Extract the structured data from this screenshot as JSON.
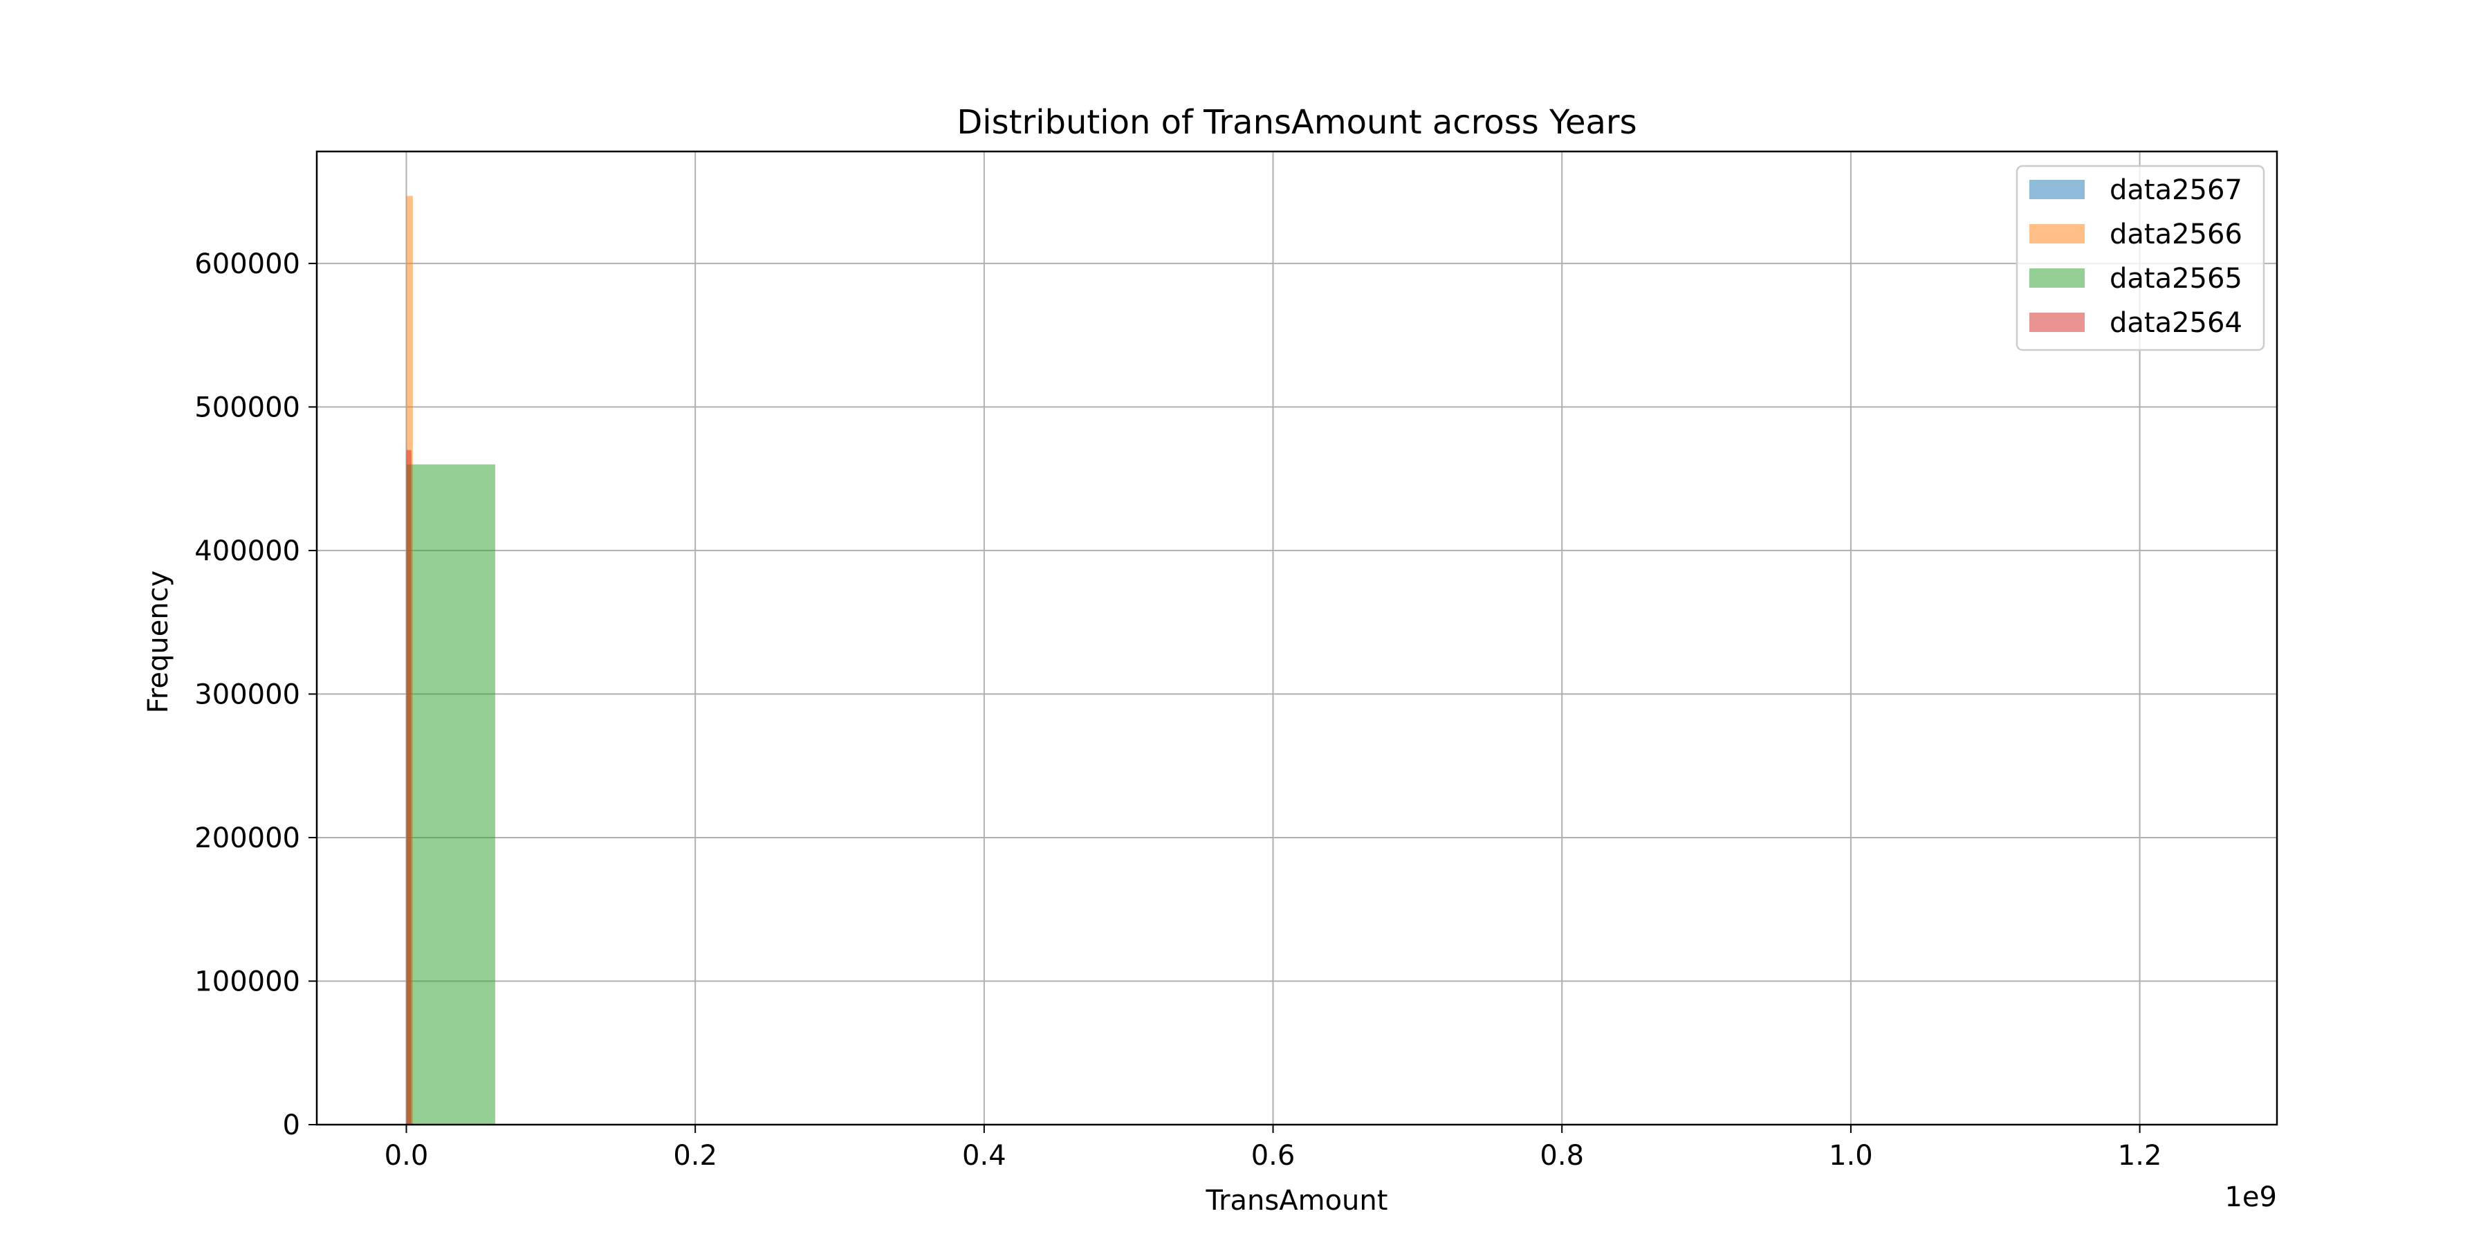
{
  "chart_data": {
    "type": "bar",
    "title": "Distribution of TransAmount across Years",
    "xlabel": "TransAmount",
    "ylabel": "Frequency",
    "x_offset_text": "1e9",
    "xlim": [
      -0.062,
      1.295
    ],
    "ylim": [
      0,
      678000
    ],
    "x_ticks": [
      0.0,
      0.2,
      0.4,
      0.6,
      0.8,
      1.0,
      1.2
    ],
    "x_tick_labels": [
      "0.0",
      "0.2",
      "0.4",
      "0.6",
      "0.8",
      "1.0",
      "1.2"
    ],
    "y_ticks": [
      0,
      100000,
      200000,
      300000,
      400000,
      500000,
      600000
    ],
    "y_tick_labels": [
      "0",
      "100000",
      "200000",
      "300000",
      "400000",
      "500000",
      "600000"
    ],
    "grid": true,
    "legend_position": "top-right",
    "series": [
      {
        "name": "data2567",
        "color": "#1f77b4",
        "bars": []
      },
      {
        "name": "data2566",
        "color": "#ff7f0e",
        "bars": [
          {
            "x0": 0.0,
            "x1": 0.0045,
            "value": 647000
          }
        ]
      },
      {
        "name": "data2565",
        "color": "#2ca02c",
        "bars": [
          {
            "x0": 0.0,
            "x1": 0.0615,
            "value": 460000
          }
        ]
      },
      {
        "name": "data2564",
        "color": "#d62728",
        "bars": [
          {
            "x0": 0.0,
            "x1": 0.0035,
            "value": 470000
          }
        ]
      }
    ]
  }
}
